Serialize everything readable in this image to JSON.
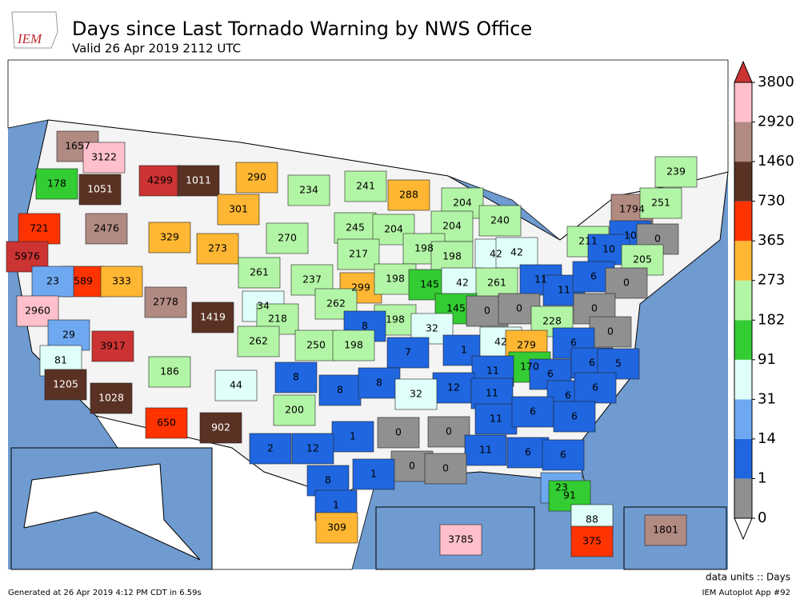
{
  "header": {
    "logo": "IEM",
    "title": "Days since Last Tornado Warning by NWS Office",
    "subtitle": "Valid 26 Apr 2019 2112 UTC"
  },
  "offices": [
    1657,
    3122,
    178,
    1051,
    4299,
    1011,
    290,
    234,
    241,
    288,
    204,
    239,
    1794,
    251,
    240,
    721,
    2476,
    329,
    301,
    273,
    270,
    245,
    204,
    204,
    211,
    10,
    0,
    5976,
    589,
    333,
    217,
    198,
    198,
    42,
    42,
    10,
    205,
    23,
    261,
    237,
    299,
    198,
    145,
    42,
    261,
    11,
    11,
    6,
    0,
    2960,
    2778,
    1419,
    34,
    262,
    145,
    0,
    0,
    0,
    218,
    198,
    8,
    32,
    228,
    0,
    29,
    3917,
    262,
    250,
    198,
    7,
    1,
    42,
    279,
    6,
    81,
    186,
    44,
    8,
    170,
    6,
    6,
    5,
    11,
    1205,
    8,
    8,
    12,
    11,
    32,
    6,
    6,
    1028,
    200,
    650,
    902,
    0,
    0,
    11,
    6,
    6,
    1,
    2,
    12,
    11,
    6,
    6,
    0,
    0,
    8,
    1,
    23,
    91,
    1,
    88,
    309,
    3785,
    375,
    1801
  ],
  "colorbar": {
    "levels": [
      0,
      1,
      14,
      31,
      91,
      182,
      273,
      365,
      730,
      1460,
      2920,
      3800
    ],
    "colors": [
      "#909090",
      "#1f66e0",
      "#6ea8f0",
      "#e0fffa",
      "#33cc33",
      "#b3f5a6",
      "#ffb733",
      "#ff3300",
      "#5a3224",
      "#b18a82",
      "#ffc0cb"
    ],
    "under_color": "#ffffff",
    "over_color": "#cc3333"
  },
  "footer": {
    "units": "data units :: Days",
    "generated": "Generated at 26 Apr 2019 4:12 PM CDT in 6.59s",
    "app": "IEM Autoplot App #92"
  }
}
